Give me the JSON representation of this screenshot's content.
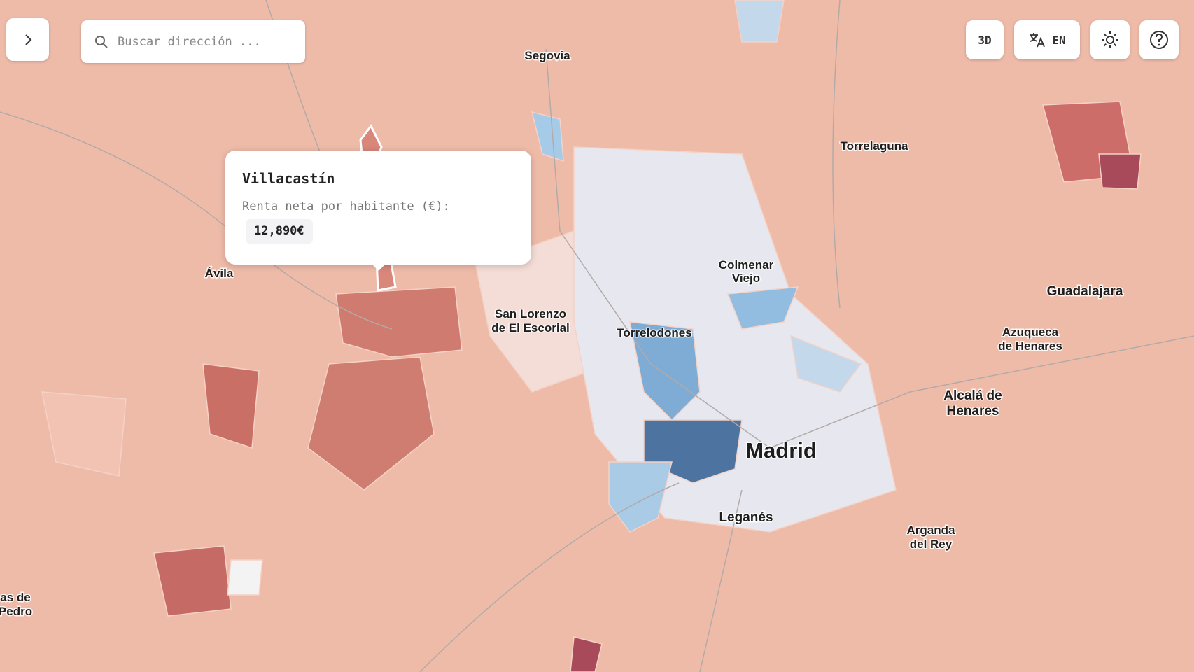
{
  "search": {
    "placeholder": "Buscar dirección ..."
  },
  "controls": {
    "mode": "3D",
    "language": "EN"
  },
  "tooltip": {
    "title": "Villacastín",
    "label": "Renta neta por habitante (€):",
    "value": "12,890€"
  },
  "places": [
    [
      "Segovia"
    ],
    [
      "Ávila"
    ],
    [
      "San Lorenzo",
      "de El Escorial"
    ],
    [
      "Torrelodones"
    ],
    [
      "Colmenar",
      "Viejo"
    ],
    [
      "Madrid"
    ],
    [
      "Leganés"
    ],
    [
      "Torrelaguna"
    ],
    [
      "Guadalajara"
    ],
    [
      "Azuqueca",
      "de Henares"
    ],
    [
      "Alcalá de",
      "Henares"
    ],
    [
      "Arganda",
      "del Rey"
    ],
    [
      "as de",
      "Pedro"
    ]
  ]
}
